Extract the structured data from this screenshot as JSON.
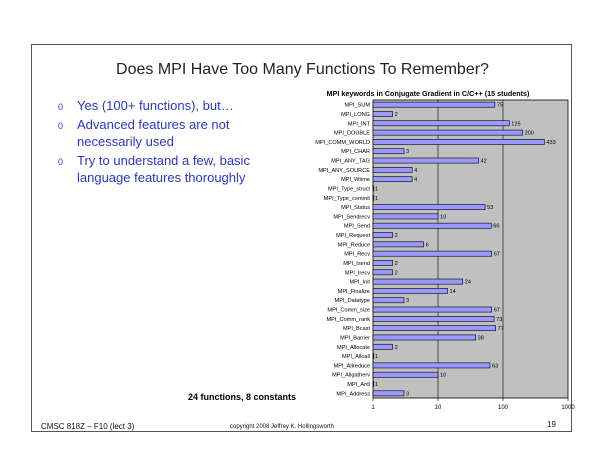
{
  "slide": {
    "title": "Does MPI Have Too Many Functions To Remember?",
    "bullets": [
      {
        "text": "Yes (100+ functions), but…"
      },
      {
        "text": "Advanced features are not necessarily used"
      },
      {
        "text": "Try to understand a few, basic language features thoroughly"
      }
    ],
    "bullet_mark": "0",
    "summary": "24 functions, 8 constants",
    "footer_course": "CMSC 818Z – F10 (lect 3)",
    "footer_copy": "copyright 2008 Jeffrey K. Hollingsworth",
    "page_number": "19"
  },
  "chart_data": {
    "type": "bar",
    "orientation": "horizontal",
    "title": "MPI keywords in Conjugate Gradient in C/C++ (15 students)",
    "xscale": "log",
    "xlim": [
      1,
      1000
    ],
    "xticks": [
      1,
      10,
      100,
      1000
    ],
    "xtick_labels": [
      "1",
      "10",
      "100",
      "1000"
    ],
    "bar_color": "#9999ff",
    "plot_background": "#c0c0c0",
    "categories": [
      "MPI_SUM",
      "MPI_LONG",
      "MPI_INT",
      "MPI_DOUBLE",
      "MPI_COMM_WORLD",
      "MPI_CHAR",
      "MPI_ANY_TAG",
      "MPI_ANY_SOURCE",
      "MPI_Wtime",
      "MPI_Type_struct",
      "MPI_Type_commit",
      "MPI_Status",
      "MPI_Sendrecv",
      "MPI_Send",
      "MPI_Request",
      "MPI_Reduce",
      "MPI_Recv",
      "MPI_Isend",
      "MPI_Irecv",
      "MPI_Init",
      "MPI_Finalize",
      "MPI_Datatype",
      "MPI_Comm_size",
      "MPI_Comm_rank",
      "MPI_Bcast",
      "MPI_Barrier",
      "MPI_Allocate",
      "MPI_Alloall",
      "MPI_Allreduce",
      "MPI_Allgatherv",
      "MPI_Antl",
      "MPI_Address"
    ],
    "values": [
      75,
      2,
      125,
      200,
      433,
      3,
      42,
      4,
      4,
      1,
      1,
      53,
      10,
      66,
      2,
      6,
      67,
      2,
      2,
      24,
      14,
      3,
      67,
      73,
      77,
      38,
      2,
      1,
      63,
      10,
      1,
      3
    ],
    "value_labels": [
      "75",
      "2",
      "125",
      "200",
      "433",
      "3",
      "42",
      "4",
      "4",
      "1",
      "1",
      "53",
      "10",
      "66",
      "2",
      "6",
      "67",
      "2",
      "2",
      "24",
      "14",
      "3",
      "67",
      "73",
      "77",
      "38",
      "2",
      "1",
      "63",
      "10",
      "1",
      "3"
    ]
  }
}
